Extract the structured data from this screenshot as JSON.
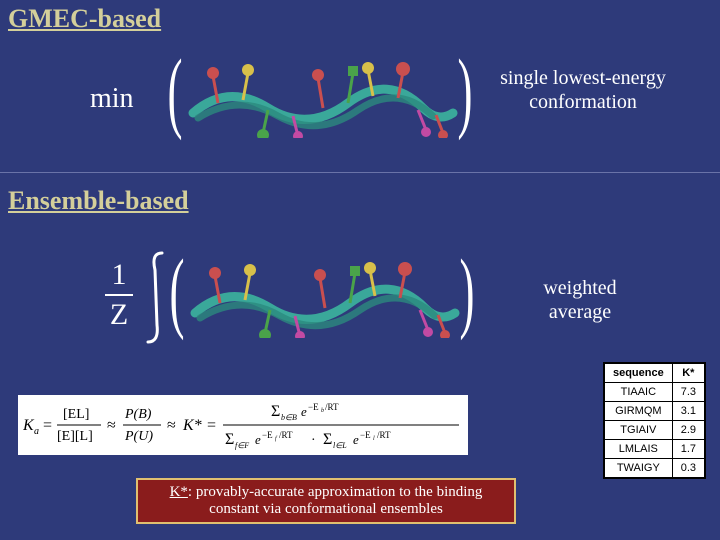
{
  "headings": {
    "gmec": "GMEC-based",
    "ensemble": "Ensemble-based"
  },
  "labels": {
    "min": "min",
    "single": "single lowest-energy conformation",
    "weighted": "weighted average",
    "frac_num": "1",
    "frac_den": "Z"
  },
  "formula": "Kₐ = [EL] / ([E][L]) ≈ P(B)/P(U) ≈ K* = Σ_{b∈B} e^{−E_b/RT} / (Σ_{f∈F} e^{−E_f/RT} · Σ_{l∈L} e^{−E_l/RT})",
  "caption_prefix": "K*",
  "caption_rest": ": provably-accurate approximation to the binding constant via conformational ensembles",
  "table": {
    "headers": [
      "sequence",
      "K*"
    ],
    "rows": [
      [
        "TIAAIC",
        "7.3"
      ],
      [
        "GIRMQM",
        "3.1"
      ],
      [
        "TGIAIV",
        "2.9"
      ],
      [
        "LMLAIS",
        "1.7"
      ],
      [
        "TWAIGY",
        "0.3"
      ]
    ]
  },
  "styling": {
    "background": "#2e3a7a",
    "heading_color": "#d4cf9a",
    "text_color": "#ffffff",
    "caption_bg": "#8a1c1c",
    "caption_border": "#e0c070",
    "table_bg": "#ffffff",
    "heading_fontsize": 26,
    "label_fontsize": 20,
    "table_fontsize": 11,
    "molecule_colors": {
      "backbone": "#3aa89a",
      "lollipops": [
        "#c94f4f",
        "#d8c04a",
        "#4aa34a",
        "#c24aa3",
        "#4a8fc2"
      ]
    }
  }
}
